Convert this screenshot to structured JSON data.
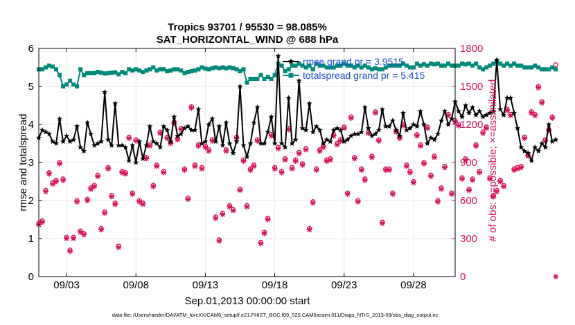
{
  "chart_data": {
    "type": "line",
    "title_line1": "Tropics 93701 / 95530 = 98.085%",
    "title_line2": "SAT_HORIZONTAL_WIND @ 688 hPa",
    "xlabel": "Sep.01,2013 00:00:00 start",
    "ylabel_left": "rmse and totalspread",
    "ylabel_right": "# of obs: o=possible; ×=assimilated",
    "xlim": [
      1,
      31
    ],
    "ylim_left": [
      0,
      6
    ],
    "ylim_right": [
      0,
      1800
    ],
    "x_ticks": [
      3,
      8,
      13,
      18,
      23,
      28
    ],
    "x_tick_labels": [
      "09/03",
      "09/08",
      "09/13",
      "09/18",
      "09/23",
      "09/28"
    ],
    "y_left_ticks": [
      0,
      1,
      2,
      3,
      4,
      5,
      6
    ],
    "y_right_ticks": [
      0,
      300,
      600,
      900,
      1200,
      1500,
      1800
    ],
    "grid": true,
    "x_start": 1.0,
    "x_step": 0.25,
    "colors": {
      "rmse": "#000000",
      "spread": "#00897b",
      "obs": "#d6135c",
      "legend_text": "#1a4fd8",
      "right_axis": "#d6135c",
      "grid": "#e8e8e8"
    },
    "legend": [
      {
        "label": "rmse grand pr = 3.9515"
      },
      {
        "label": "totalspread grand pr = 5.415"
      }
    ],
    "series": [
      {
        "name": "rmse",
        "values": [
          3.65,
          3.85,
          3.8,
          3.75,
          3.55,
          3.5,
          4.15,
          3.55,
          3.7,
          3.55,
          3.6,
          3.95,
          3.4,
          3.3,
          4.05,
          3.75,
          3.45,
          3.5,
          3.55,
          4.85,
          3.6,
          3.45,
          4.55,
          3.45,
          3.45,
          3.4,
          3.05,
          3.45,
          3.0,
          3.55,
          3.1,
          3.45,
          3.95,
          3.55,
          3.5,
          3.4,
          3.95,
          3.85,
          3.55,
          4.2,
          3.7,
          3.75,
          3.9,
          3.95,
          3.85,
          3.85,
          4.4,
          3.5,
          3.55,
          4.0,
          4.15,
          3.55,
          3.95,
          3.45,
          4.05,
          3.5,
          3.25,
          3.55,
          5.0,
          3.45,
          3.15,
          3.5,
          4.05,
          4.45,
          3.5,
          3.5,
          3.8,
          4.2,
          3.5,
          5.8,
          3.5,
          3.4,
          4.7,
          3.5,
          3.6,
          5.15,
          3.9,
          3.85,
          4.55,
          3.8,
          3.95,
          3.85,
          3.5,
          3.6,
          3.55,
          3.85,
          3.9,
          3.85,
          3.55,
          3.6,
          3.7,
          3.75,
          3.75,
          3.8,
          4.45,
          3.9,
          3.7,
          3.75,
          3.85,
          4.4,
          3.95,
          3.95,
          4.1,
          3.85,
          3.7,
          4.3,
          3.85,
          3.9,
          4.0,
          3.95,
          4.35,
          4.0,
          3.5,
          3.65,
          3.6,
          3.75,
          4.1,
          4.35,
          4.0,
          4.15,
          4.6,
          4.35,
          4.2,
          4.5,
          4.3,
          4.45,
          4.25,
          4.35,
          4.2,
          4.25,
          4.3,
          4.35,
          5.7,
          4.4,
          4.25,
          4.7,
          4.7,
          4.3,
          3.9,
          3.4,
          3.3,
          3.25,
          3.05,
          3.4,
          3.3,
          3.5,
          3.4,
          4.0,
          3.55,
          3.6
        ]
      },
      {
        "name": "totalspread",
        "values": [
          5.45,
          5.45,
          5.5,
          5.55,
          5.52,
          5.45,
          5.3,
          5.0,
          5.05,
          5.15,
          5.05,
          5.0,
          5.45,
          5.3,
          5.35,
          5.35,
          5.35,
          5.38,
          5.36,
          5.34,
          5.35,
          5.36,
          5.37,
          5.32,
          5.38,
          5.35,
          5.45,
          5.42,
          5.45,
          5.42,
          5.38,
          5.42,
          5.45,
          5.5,
          5.42,
          5.45,
          5.45,
          5.4,
          5.42,
          5.45,
          5.45,
          5.42,
          5.35,
          5.38,
          5.4,
          5.42,
          5.45,
          5.5,
          5.47,
          5.45,
          5.48,
          5.5,
          5.48,
          5.5,
          5.48,
          5.5,
          5.48,
          5.45,
          5.4,
          5.45,
          5.1,
          5.2,
          5.2,
          5.2,
          5.3,
          5.2,
          5.25,
          5.2,
          5.3,
          5.6,
          5.55,
          5.4,
          5.45,
          5.55,
          5.55,
          5.6,
          5.55,
          5.5,
          5.55,
          5.45,
          5.6,
          5.55,
          5.55,
          5.5,
          5.5,
          5.5,
          5.55,
          5.55,
          5.6,
          5.55,
          5.55,
          5.5,
          5.55,
          5.5,
          5.55,
          5.5,
          5.45,
          5.48,
          5.45,
          5.45,
          5.5,
          5.55,
          5.55,
          5.55,
          5.55,
          5.6,
          5.55,
          5.5,
          5.5,
          5.6,
          5.55,
          5.58,
          5.55,
          5.6,
          5.58,
          5.6,
          5.55,
          5.55,
          5.6,
          5.55,
          5.55,
          5.55,
          5.6,
          5.58,
          5.6,
          5.55,
          5.6,
          5.5,
          5.45,
          5.5,
          5.55,
          5.6,
          5.65,
          5.6,
          5.55,
          5.6,
          5.55,
          5.6,
          5.55,
          5.55,
          5.5,
          5.5,
          5.5,
          5.55,
          5.5,
          5.45,
          5.45,
          5.45,
          5.5,
          5.45
        ]
      },
      {
        "name": "possible_obs",
        "values": [
          420,
          440,
          680,
          820,
          740,
          760,
          900,
          770,
          310,
          210,
          310,
          600,
          360,
          340,
          610,
          700,
          720,
          800,
          380,
          510,
          860,
          640,
          580,
          240,
          830,
          820,
          1100,
          660,
          1080,
          600,
          580,
          940,
          1040,
          720,
          880,
          1140,
          830,
          1100,
          1060,
          1220,
          1090,
          1170,
          850,
          620,
          1340,
          880,
          1040,
          860,
          1030,
          1000,
          1080,
          470,
          290,
          500,
          1000,
          560,
          530,
          1100,
          690,
          920,
          560,
          850,
          880,
          1080,
          270,
          350,
          460,
          1120,
          860,
          1020,
          830,
          930,
          1170,
          860,
          920,
          980,
          890,
          1010,
          380,
          590,
          850,
          1000,
          1030,
          920,
          930,
          1120,
          1050,
          1080,
          1180,
          660,
          1260,
          940,
          600,
          850,
          770,
          1140,
          950,
          1300,
          1080,
          430,
          850,
          850,
          660,
          1150,
          1100,
          1200,
          880,
          830,
          750,
          1120,
          1040,
          900,
          1180,
          800,
          950,
          600,
          700,
          870,
          1280,
          660,
          1230,
          1200,
          780,
          930,
          690,
          770,
          1040,
          830,
          1140,
          1180,
          780,
          640,
          680,
          760,
          720,
          1320,
          1280,
          850,
          860,
          870,
          1100,
          960,
          1300,
          1280,
          1500,
          1380,
          1080,
          1160,
          1260,
          1670
        ]
      },
      {
        "name": "assimilated_obs",
        "values": [
          410,
          430,
          670,
          810,
          730,
          750,
          890,
          760,
          300,
          200,
          300,
          590,
          350,
          330,
          600,
          690,
          710,
          790,
          370,
          500,
          850,
          630,
          570,
          230,
          820,
          810,
          1090,
          650,
          1070,
          590,
          570,
          930,
          1030,
          710,
          870,
          1130,
          820,
          1090,
          1050,
          1210,
          1080,
          1160,
          840,
          610,
          1330,
          870,
          1030,
          850,
          1020,
          990,
          1070,
          460,
          280,
          490,
          990,
          550,
          520,
          1090,
          680,
          910,
          550,
          840,
          870,
          1070,
          260,
          340,
          450,
          1110,
          850,
          1010,
          820,
          920,
          1160,
          850,
          910,
          970,
          880,
          1000,
          370,
          580,
          840,
          990,
          1020,
          910,
          920,
          1110,
          1040,
          1070,
          1170,
          650,
          1250,
          930,
          590,
          840,
          760,
          1130,
          940,
          1290,
          1070,
          420,
          840,
          840,
          650,
          1140,
          1090,
          1190,
          870,
          820,
          740,
          1110,
          1030,
          890,
          1170,
          790,
          940,
          590,
          690,
          860,
          1270,
          650,
          1220,
          1190,
          770,
          920,
          680,
          760,
          1030,
          820,
          1130,
          1170,
          770,
          630,
          670,
          750,
          710,
          1310,
          1270,
          840,
          850,
          860,
          1090,
          950,
          1290,
          1270,
          1490,
          1370,
          1070,
          1150,
          1250,
          0
        ]
      }
    ]
  },
  "footer": "data file: /Users/raeder/DAI/ATM_forcXX/CAM6_setup/f.e21.FHIST_BGC.f09_025.CAM6assim.011/Diags_NTrS_2013-09/obs_diag_output.nc"
}
